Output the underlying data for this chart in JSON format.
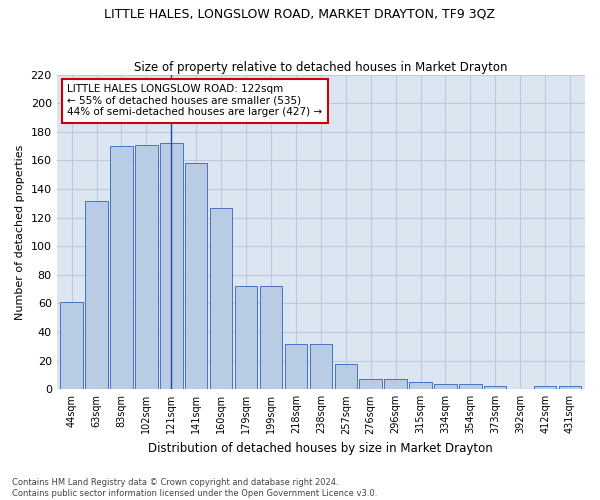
{
  "title": "LITTLE HALES, LONGSLOW ROAD, MARKET DRAYTON, TF9 3QZ",
  "subtitle": "Size of property relative to detached houses in Market Drayton",
  "xlabel": "Distribution of detached houses by size in Market Drayton",
  "ylabel": "Number of detached properties",
  "footer_line1": "Contains HM Land Registry data © Crown copyright and database right 2024.",
  "footer_line2": "Contains public sector information licensed under the Open Government Licence v3.0.",
  "categories": [
    "44sqm",
    "63sqm",
    "83sqm",
    "102sqm",
    "121sqm",
    "141sqm",
    "160sqm",
    "179sqm",
    "199sqm",
    "218sqm",
    "238sqm",
    "257sqm",
    "276sqm",
    "296sqm",
    "315sqm",
    "334sqm",
    "354sqm",
    "373sqm",
    "392sqm",
    "412sqm",
    "431sqm"
  ],
  "values": [
    61,
    132,
    170,
    171,
    172,
    158,
    127,
    72,
    72,
    32,
    32,
    18,
    7,
    7,
    5,
    4,
    4,
    2,
    0,
    2,
    2
  ],
  "bar_color": "#b8cce4",
  "bar_edge_color": "#4472c4",
  "grid_color": "#c0c8e0",
  "background_color": "#dce6f1",
  "marker_line_index": 4,
  "marker_label": "LITTLE HALES LONGSLOW ROAD: 122sqm",
  "marker_line1": "← 55% of detached houses are smaller (535)",
  "marker_line2": "44% of semi-detached houses are larger (427) →",
  "annotation_box_color": "#ffffff",
  "annotation_box_edge": "#cc0000",
  "ylim": [
    0,
    220
  ],
  "yticks": [
    0,
    20,
    40,
    60,
    80,
    100,
    120,
    140,
    160,
    180,
    200,
    220
  ]
}
